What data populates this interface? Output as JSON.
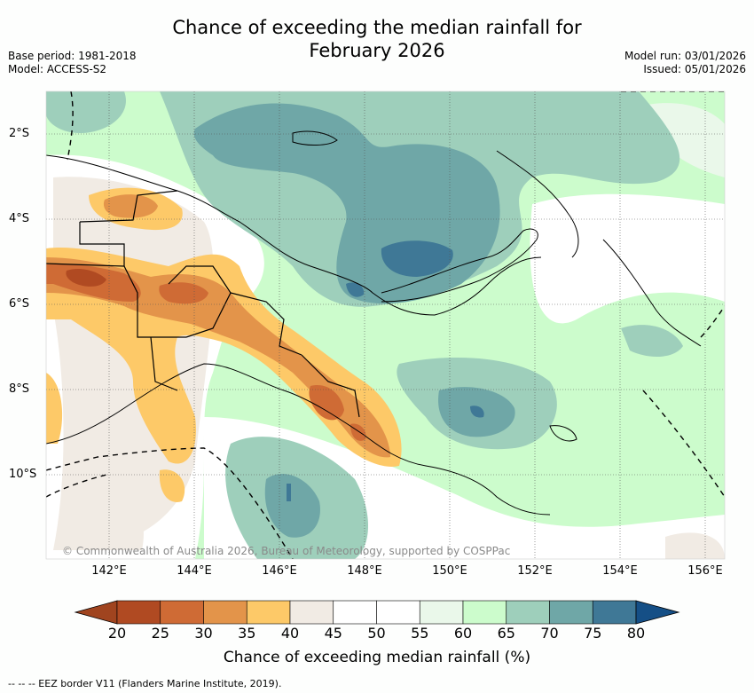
{
  "title_line1": "Chance of exceeding the median rainfall for",
  "title_line2": "February 2026",
  "base_period": "Base period: 1981-2018",
  "model": "Model: ACCESS-S2",
  "model_run": "Model run: 03/01/2026",
  "issued": "Issued: 05/01/2026",
  "copyright": "© Commonwealth of Australia 2026, Bureau of Meteorology, supported by COSPPac",
  "lat_ticks": [
    "2°S",
    "4°S",
    "6°S",
    "8°S",
    "10°S"
  ],
  "lon_ticks": [
    "142°E",
    "144°E",
    "146°E",
    "148°E",
    "150°E",
    "152°E",
    "154°E",
    "156°E"
  ],
  "colorbar": {
    "ticks": [
      "20",
      "25",
      "30",
      "35",
      "40",
      "45",
      "50",
      "55",
      "60",
      "65",
      "70",
      "75",
      "80"
    ],
    "colors": [
      "#b04a22",
      "#cf6b35",
      "#e3944a",
      "#fdc968",
      "#f1ebe4",
      "#ffffff",
      "#ffffff",
      "#eaf8ea",
      "#ccfccc",
      "#9ecfbb",
      "#6fa7a7",
      "#3f7896"
    ],
    "under_color": "#a0441f",
    "over_color": "#154f86",
    "label": "Chance of exceeding median rainfall (%)"
  },
  "eez_legend": "--  --  -- EEZ border V11 (Flanders Marine Institute, 2019)."
}
